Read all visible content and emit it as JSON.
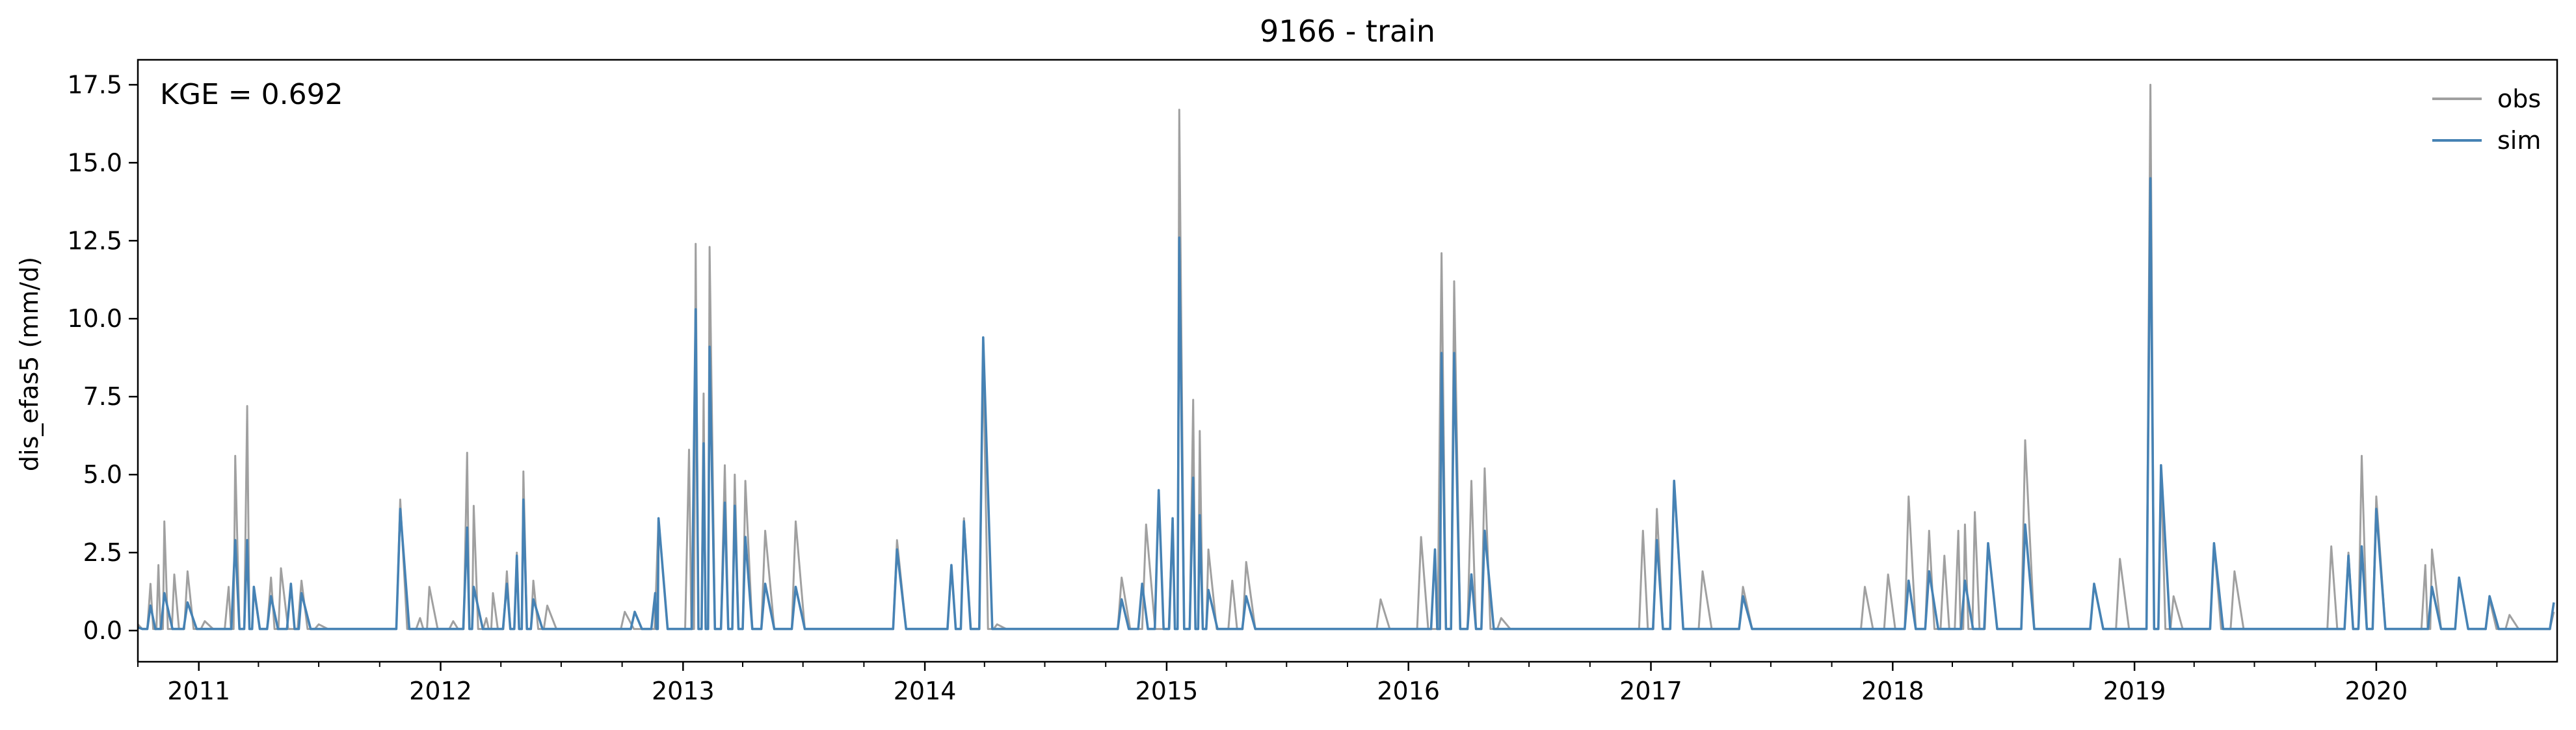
{
  "chart_data": {
    "type": "line",
    "title": "9166 - train",
    "xlabel": "",
    "ylabel": "dis_efas5 (mm/d)",
    "annotation": "KGE = 0.692",
    "xlim": [
      "2010-10-01",
      "2020-09-30"
    ],
    "ylim": [
      -1.0,
      18.3
    ],
    "yticks": [
      0.0,
      2.5,
      5.0,
      7.5,
      10.0,
      12.5,
      15.0,
      17.5
    ],
    "ytick_labels": [
      "0.0",
      "2.5",
      "5.0",
      "7.5",
      "10.0",
      "12.5",
      "15.0",
      "17.5"
    ],
    "xticks": [
      "2011-01-01",
      "2012-01-01",
      "2013-01-01",
      "2014-01-01",
      "2015-01-01",
      "2016-01-01",
      "2017-01-01",
      "2018-01-01",
      "2019-01-01",
      "2020-01-01"
    ],
    "xtick_labels": [
      "2011",
      "2012",
      "2013",
      "2014",
      "2015",
      "2016",
      "2017",
      "2018",
      "2019",
      "2020"
    ],
    "grid": false,
    "legend_position": "top-right",
    "series": [
      {
        "name": "obs",
        "color": "#a0a0a0",
        "points": [
          [
            "2010-10-01",
            0.2
          ],
          [
            "2010-10-20",
            1.5
          ],
          [
            "2010-11-01",
            2.1
          ],
          [
            "2010-11-10",
            3.5
          ],
          [
            "2010-11-25",
            1.8
          ],
          [
            "2010-12-15",
            1.9
          ],
          [
            "2011-01-10",
            0.3
          ],
          [
            "2011-02-15",
            1.4
          ],
          [
            "2011-02-25",
            5.6
          ],
          [
            "2011-03-15",
            7.2
          ],
          [
            "2011-03-25",
            1.3
          ],
          [
            "2011-04-20",
            1.7
          ],
          [
            "2011-05-05",
            2.0
          ],
          [
            "2011-06-05",
            1.6
          ],
          [
            "2011-07-01",
            0.2
          ],
          [
            "2011-11-01",
            4.2
          ],
          [
            "2011-12-01",
            0.4
          ],
          [
            "2011-12-15",
            1.4
          ],
          [
            "2012-01-20",
            0.3
          ],
          [
            "2012-02-10",
            5.7
          ],
          [
            "2012-02-20",
            4.0
          ],
          [
            "2012-03-10",
            0.4
          ],
          [
            "2012-03-20",
            1.2
          ],
          [
            "2012-04-10",
            1.9
          ],
          [
            "2012-04-25",
            2.5
          ],
          [
            "2012-05-05",
            5.1
          ],
          [
            "2012-05-20",
            1.6
          ],
          [
            "2012-06-10",
            0.8
          ],
          [
            "2012-10-05",
            0.6
          ],
          [
            "2012-11-25",
            3.6
          ],
          [
            "2013-01-10",
            5.8
          ],
          [
            "2013-01-20",
            12.4
          ],
          [
            "2013-02-01",
            7.6
          ],
          [
            "2013-02-10",
            12.3
          ],
          [
            "2013-03-05",
            5.3
          ],
          [
            "2013-03-20",
            5.0
          ],
          [
            "2013-04-05",
            4.8
          ],
          [
            "2013-05-05",
            3.2
          ],
          [
            "2013-06-20",
            3.5
          ],
          [
            "2013-11-20",
            2.9
          ],
          [
            "2014-02-10",
            2.1
          ],
          [
            "2014-03-01",
            3.6
          ],
          [
            "2014-03-30",
            9.0
          ],
          [
            "2014-04-20",
            0.2
          ],
          [
            "2014-10-25",
            1.7
          ],
          [
            "2014-12-01",
            3.4
          ],
          [
            "2015-01-10",
            3.5
          ],
          [
            "2015-01-20",
            16.7
          ],
          [
            "2015-02-10",
            7.4
          ],
          [
            "2015-02-20",
            6.4
          ],
          [
            "2015-03-05",
            2.6
          ],
          [
            "2015-04-10",
            1.6
          ],
          [
            "2015-05-01",
            2.2
          ],
          [
            "2015-11-20",
            1.0
          ],
          [
            "2016-01-20",
            3.0
          ],
          [
            "2016-02-20",
            12.1
          ],
          [
            "2016-03-10",
            11.2
          ],
          [
            "2016-04-05",
            4.8
          ],
          [
            "2016-04-25",
            5.2
          ],
          [
            "2016-05-20",
            0.4
          ],
          [
            "2016-12-20",
            3.2
          ],
          [
            "2017-01-10",
            3.9
          ],
          [
            "2017-02-05",
            4.7
          ],
          [
            "2017-03-20",
            1.9
          ],
          [
            "2017-05-20",
            1.4
          ],
          [
            "2017-11-20",
            1.4
          ],
          [
            "2017-12-25",
            1.8
          ],
          [
            "2018-01-25",
            4.3
          ],
          [
            "2018-02-25",
            3.2
          ],
          [
            "2018-03-20",
            2.4
          ],
          [
            "2018-04-10",
            3.2
          ],
          [
            "2018-04-20",
            3.4
          ],
          [
            "2018-05-05",
            3.8
          ],
          [
            "2018-05-25",
            2.8
          ],
          [
            "2018-07-20",
            6.1
          ],
          [
            "2018-11-01",
            1.5
          ],
          [
            "2018-12-10",
            2.3
          ],
          [
            "2019-01-25",
            17.5
          ],
          [
            "2019-02-10",
            5.3
          ],
          [
            "2019-03-01",
            1.1
          ],
          [
            "2019-05-01",
            2.8
          ],
          [
            "2019-06-01",
            1.9
          ],
          [
            "2019-10-25",
            2.7
          ],
          [
            "2019-11-20",
            2.5
          ],
          [
            "2019-12-10",
            5.6
          ],
          [
            "2020-01-01",
            4.3
          ],
          [
            "2020-03-15",
            2.1
          ],
          [
            "2020-03-25",
            2.6
          ],
          [
            "2020-05-05",
            1.7
          ],
          [
            "2020-06-20",
            1.0
          ],
          [
            "2020-07-20",
            0.5
          ],
          [
            "2020-09-25",
            0.6
          ]
        ]
      },
      {
        "name": "sim",
        "color": "#4682b4",
        "points": [
          [
            "2010-10-01",
            0.1
          ],
          [
            "2010-10-20",
            0.8
          ],
          [
            "2010-11-10",
            1.2
          ],
          [
            "2010-12-15",
            0.9
          ],
          [
            "2011-02-25",
            2.9
          ],
          [
            "2011-03-15",
            2.9
          ],
          [
            "2011-03-25",
            1.4
          ],
          [
            "2011-04-20",
            1.1
          ],
          [
            "2011-05-20",
            1.5
          ],
          [
            "2011-06-05",
            1.2
          ],
          [
            "2011-11-01",
            3.9
          ],
          [
            "2012-02-10",
            3.3
          ],
          [
            "2012-02-20",
            1.4
          ],
          [
            "2012-04-10",
            1.5
          ],
          [
            "2012-04-25",
            2.4
          ],
          [
            "2012-05-05",
            4.2
          ],
          [
            "2012-05-20",
            1.0
          ],
          [
            "2012-10-20",
            0.6
          ],
          [
            "2012-11-20",
            1.2
          ],
          [
            "2012-11-25",
            3.6
          ],
          [
            "2013-01-20",
            10.3
          ],
          [
            "2013-02-01",
            6.0
          ],
          [
            "2013-02-10",
            9.1
          ],
          [
            "2013-03-05",
            4.1
          ],
          [
            "2013-03-20",
            4.0
          ],
          [
            "2013-04-05",
            3.0
          ],
          [
            "2013-05-05",
            1.5
          ],
          [
            "2013-06-20",
            1.4
          ],
          [
            "2013-11-20",
            2.6
          ],
          [
            "2014-02-10",
            2.1
          ],
          [
            "2014-03-01",
            3.5
          ],
          [
            "2014-03-30",
            9.4
          ],
          [
            "2014-10-25",
            1.0
          ],
          [
            "2014-11-25",
            1.5
          ],
          [
            "2014-12-20",
            4.5
          ],
          [
            "2015-01-10",
            3.6
          ],
          [
            "2015-01-20",
            12.6
          ],
          [
            "2015-02-10",
            4.9
          ],
          [
            "2015-02-20",
            3.7
          ],
          [
            "2015-03-05",
            1.3
          ],
          [
            "2015-05-01",
            1.1
          ],
          [
            "2016-02-10",
            2.6
          ],
          [
            "2016-02-20",
            8.9
          ],
          [
            "2016-03-10",
            8.9
          ],
          [
            "2016-04-05",
            1.8
          ],
          [
            "2016-04-25",
            3.2
          ],
          [
            "2017-01-10",
            2.9
          ],
          [
            "2017-02-05",
            4.8
          ],
          [
            "2017-05-20",
            1.1
          ],
          [
            "2018-01-25",
            1.6
          ],
          [
            "2018-02-25",
            1.9
          ],
          [
            "2018-04-20",
            1.6
          ],
          [
            "2018-05-25",
            2.8
          ],
          [
            "2018-07-20",
            3.4
          ],
          [
            "2018-11-01",
            1.5
          ],
          [
            "2019-01-25",
            14.5
          ],
          [
            "2019-02-10",
            5.3
          ],
          [
            "2019-05-01",
            2.8
          ],
          [
            "2019-11-20",
            2.4
          ],
          [
            "2019-12-10",
            2.7
          ],
          [
            "2020-01-01",
            3.9
          ],
          [
            "2020-03-25",
            1.4
          ],
          [
            "2020-05-05",
            1.7
          ],
          [
            "2020-06-20",
            1.1
          ],
          [
            "2020-09-25",
            0.9
          ]
        ]
      }
    ]
  }
}
